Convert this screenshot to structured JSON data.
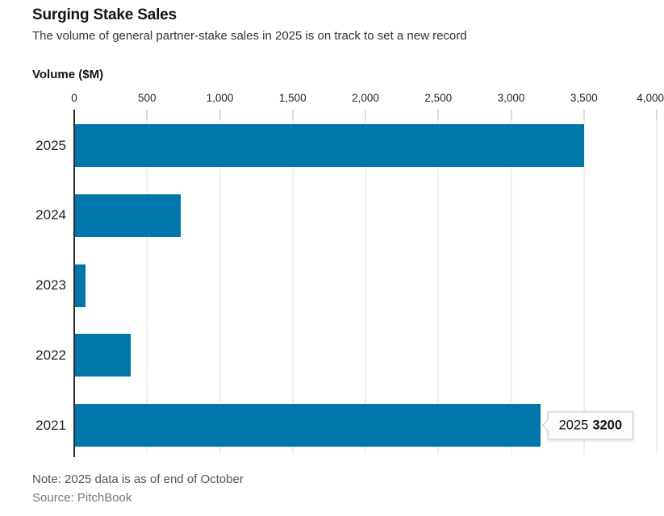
{
  "header": {
    "title": "Surging Stake Sales",
    "subtitle": "The volume of general partner-stake sales in 2025 is on track to set a new record"
  },
  "chart_data": {
    "type": "bar",
    "orientation": "horizontal",
    "title": "Surging Stake Sales",
    "subtitle": "The volume of general partner-stake sales in 2025 is on track to set a new record",
    "axis_title": "Volume ($M)",
    "categories": [
      "2025",
      "2024",
      "2023",
      "2022",
      "2021"
    ],
    "values": [
      3500,
      730,
      80,
      390,
      3200
    ],
    "xlim": [
      0,
      4000
    ],
    "x_ticks": [
      0,
      500,
      1000,
      1500,
      2000,
      2500,
      3000,
      3500,
      4000
    ],
    "x_tick_labels": [
      "0",
      "500",
      "1,000",
      "1,500",
      "2,000",
      "2,500",
      "3,000",
      "3,500",
      "4,000"
    ],
    "grid": true,
    "bar_color": "#0077ab"
  },
  "tooltip": {
    "label": "2025",
    "value": "3200",
    "attached_to": "2021"
  },
  "footer": {
    "note": "Note: 2025 data is as of end of October",
    "source": "Source: PitchBook"
  },
  "colors": {
    "bar": "#0077ab",
    "axis": "#2b2b2b",
    "gridline": "#e2e2e2",
    "tick": "#b3b3b3",
    "text": "#222222",
    "note": "#555555",
    "source": "#777777"
  }
}
